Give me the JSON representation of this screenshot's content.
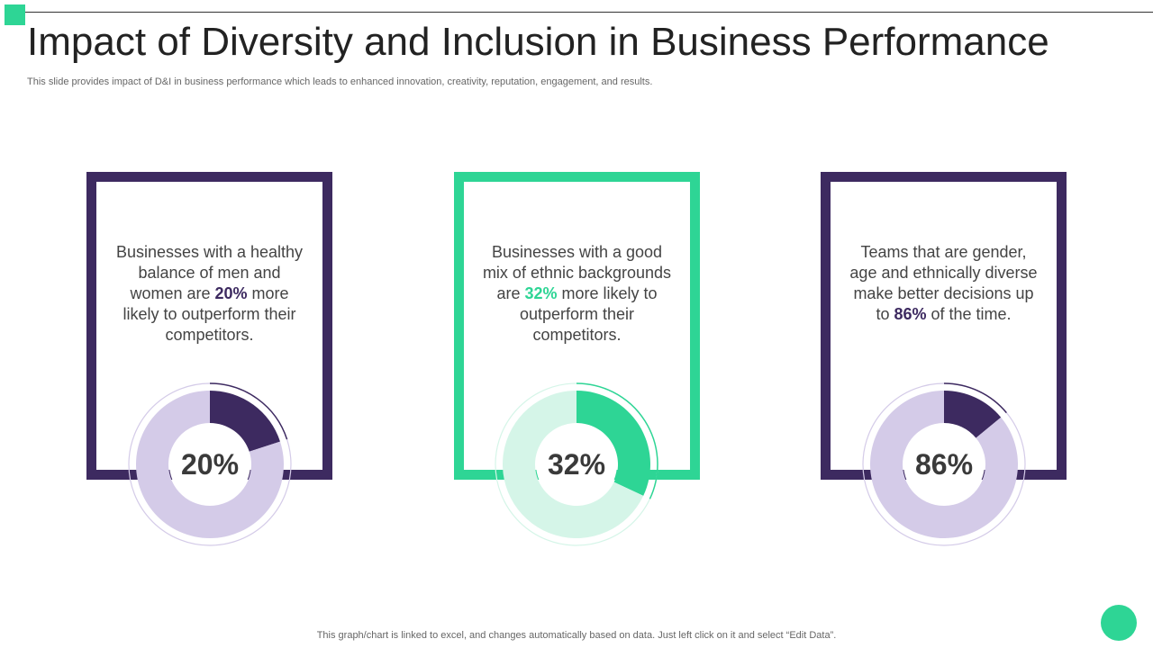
{
  "title": "Impact of Diversity and Inclusion in Business Performance",
  "subtitle": "This slide provides impact of D&I in business performance which leads to enhanced innovation, creativity, reputation, engagement, and results.",
  "footer": "This graph/chart is linked to excel, and changes automatically based on data. Just left click on it and select “Edit Data”.",
  "colors": {
    "accent_green": "#2ed595",
    "dark_purple": "#3d2a60",
    "light_purple": "#d4cbe8",
    "light_green": "#d5f5e8"
  },
  "cards": [
    {
      "text_before": "Businesses with a healthy balance of men and women are ",
      "highlight": "20%",
      "text_after": " more likely to outperform their competitors.",
      "border_color": "#3d2a60",
      "highlight_color": "#3d2a60"
    },
    {
      "text_before": "Businesses with a good mix of ethnic backgrounds are ",
      "highlight": "32%",
      "text_after": " more likely to outperform their competitors.",
      "border_color": "#2ed595",
      "highlight_color": "#2ed595"
    },
    {
      "text_before": "Teams that are gender, age and ethnically diverse make better decisions up to ",
      "highlight": "86%",
      "text_after": "  of the time.",
      "border_color": "#3d2a60",
      "highlight_color": "#3d2a60"
    }
  ],
  "chart_data": [
    {
      "type": "pie",
      "label": "20%",
      "values": [
        20,
        80
      ],
      "colors": [
        "#3d2a60",
        "#d4cbe8"
      ]
    },
    {
      "type": "pie",
      "label": "32%",
      "values": [
        32,
        68
      ],
      "colors": [
        "#2ed595",
        "#d5f5e8"
      ]
    },
    {
      "type": "pie",
      "label": "86%",
      "values": [
        14,
        86
      ],
      "colors": [
        "#3d2a60",
        "#d4cbe8"
      ]
    }
  ]
}
